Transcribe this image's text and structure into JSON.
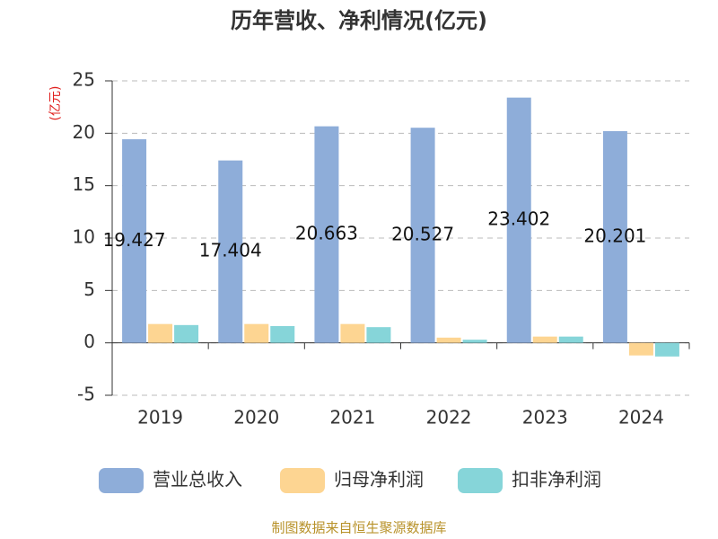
{
  "chart_data": {
    "type": "bar",
    "title": "历年营收、净利情况(亿元)",
    "y_label": "(亿元)",
    "categories": [
      "2019",
      "2020",
      "2021",
      "2022",
      "2023",
      "2024"
    ],
    "series": [
      {
        "name": "营业总收入",
        "color": "#8eadd9",
        "values": [
          19.427,
          17.404,
          20.663,
          20.527,
          23.402,
          20.201
        ],
        "labels": true
      },
      {
        "name": "归母净利润",
        "color": "#fdd592",
        "values": [
          1.8,
          1.8,
          1.8,
          0.5,
          0.6,
          -1.2
        ]
      },
      {
        "name": "扣非净利润",
        "color": "#86d5d9",
        "values": [
          1.7,
          1.6,
          1.5,
          0.3,
          0.6,
          -1.3
        ]
      }
    ],
    "ylim": [
      -5,
      25
    ],
    "yticks": [
      -5,
      0,
      5,
      10,
      15,
      20,
      25
    ],
    "grid": true,
    "source": "制图数据来自恒生聚源数据库"
  }
}
